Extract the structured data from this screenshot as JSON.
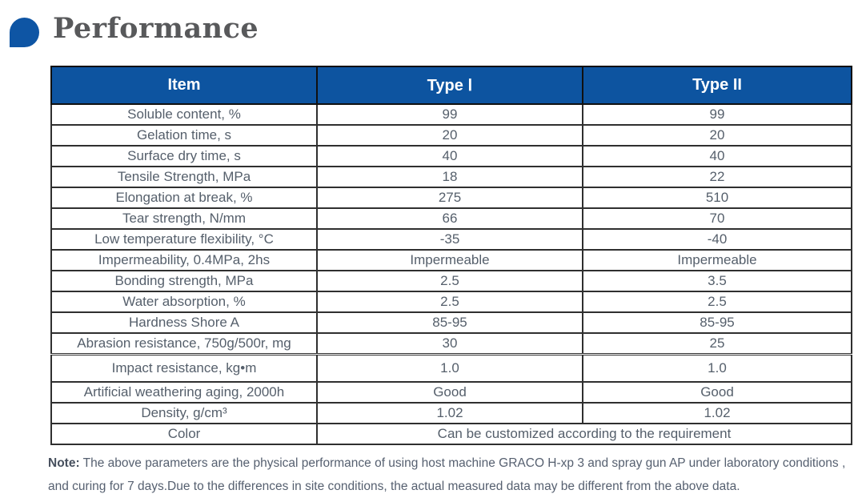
{
  "header": {
    "title": "Performance",
    "accent_color": "#0e55a4"
  },
  "table": {
    "header_color": "#0d54a0",
    "headers": [
      "Item",
      "Type Ⅰ",
      "Type II"
    ],
    "rows": [
      {
        "item": "Soluble content, %",
        "type1": "99",
        "type2": "99"
      },
      {
        "item": "Gelation time, s",
        "type1": "20",
        "type2": "20"
      },
      {
        "item": "Surface dry time, s",
        "type1": "40",
        "type2": "40"
      },
      {
        "item": "Tensile Strength, MPa",
        "type1": "18",
        "type2": "22"
      },
      {
        "item": "Elongation at break, %",
        "type1": "275",
        "type2": "510"
      },
      {
        "item": "Tear strength, N/mm",
        "type1": "66",
        "type2": "70"
      },
      {
        "item": "Low temperature flexibility, °C",
        "type1": "-35",
        "type2": "-40"
      },
      {
        "item": "Impermeability, 0.4MPa, 2hs",
        "type1": "Impermeable",
        "type2": "Impermeable"
      },
      {
        "item": "Bonding strength, MPa",
        "type1": "2.5",
        "type2": "3.5"
      },
      {
        "item": "Water absorption, %",
        "type1": "2.5",
        "type2": "2.5"
      },
      {
        "item": "Hardness Shore A",
        "type1": "85-95",
        "type2": "85-95"
      },
      {
        "item": "Abrasion resistance, 750g/500r, mg",
        "type1": "30",
        "type2": "25"
      },
      {
        "item": "Impact resistance, kg•m",
        "type1": "1.0",
        "type2": "1.0"
      },
      {
        "item": "Artificial weathering aging, 2000h",
        "type1": "Good",
        "type2": "Good"
      },
      {
        "item": "Density, g/cm³",
        "type1": "1.02",
        "type2": "1.02"
      },
      {
        "item": "Color",
        "merged": "Can be customized according to the requirement"
      }
    ]
  },
  "note": {
    "label": "Note:",
    "line1": " The above parameters are the physical performance of using host machine GRACO H-xp 3 and spray gun AP under laboratory conditions ,",
    "line2": "and curing for 7 days.Due to the differences in site conditions, the actual measured data may be different from the above data."
  }
}
